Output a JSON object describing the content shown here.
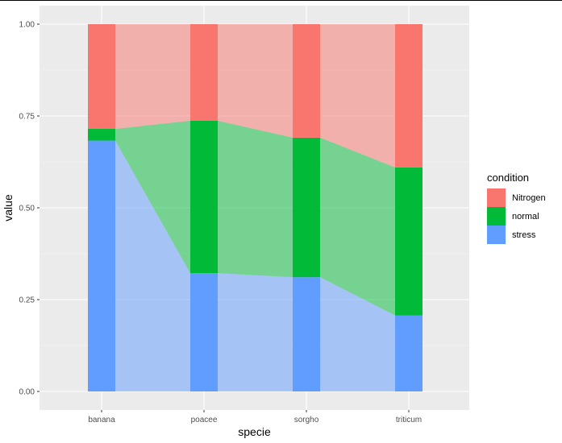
{
  "chart_data": {
    "type": "bar",
    "xlabel": "specie",
    "ylabel": "value",
    "ylim": [
      0,
      1
    ],
    "y_ticks": [
      "0.00",
      "0.25",
      "0.50",
      "0.75",
      "1.00"
    ],
    "y_tick_values": [
      0,
      0.25,
      0.5,
      0.75,
      1.0
    ],
    "categories": [
      "banana",
      "poacee",
      "sorgho",
      "triticum"
    ],
    "stacked": true,
    "alluvial_bands": true,
    "grid": true,
    "legend_position": "right",
    "legend_title": "condition",
    "series": [
      {
        "name": "stress",
        "color": "#619CFF",
        "values": [
          0.683,
          0.322,
          0.311,
          0.207
        ]
      },
      {
        "name": "normal",
        "color": "#00BA38",
        "values": [
          0.032,
          0.415,
          0.38,
          0.403
        ]
      },
      {
        "name": "Nitrogen",
        "color": "#F8766D",
        "values": [
          0.285,
          0.263,
          0.309,
          0.39
        ]
      }
    ],
    "legend_order": [
      "Nitrogen",
      "normal",
      "stress"
    ]
  }
}
